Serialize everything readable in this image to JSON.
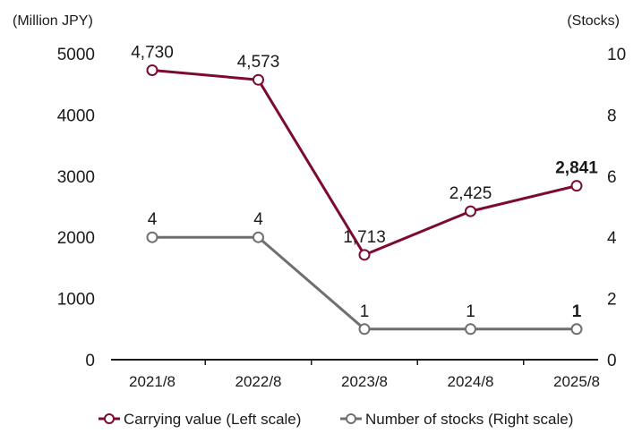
{
  "chart_data": {
    "type": "line",
    "categories": [
      "2021/8",
      "2022/8",
      "2023/8",
      "2024/8",
      "2025/8"
    ],
    "left_axis": {
      "unit": "(Million JPY)",
      "range": [
        0,
        5000
      ],
      "ticks": [
        "0",
        "1000",
        "2000",
        "3000",
        "4000",
        "5000"
      ]
    },
    "right_axis": {
      "unit": "(Stocks)",
      "range": [
        0,
        10
      ],
      "ticks": [
        "0",
        "2",
        "4",
        "6",
        "8",
        "10"
      ]
    },
    "series": [
      {
        "name": "Carrying value (Left scale)",
        "axis": "left",
        "color": "#7b0a35",
        "values": [
          4730,
          4573,
          1713,
          2425,
          2841
        ],
        "labels": [
          "4,730",
          "4,573",
          "1,713",
          "2,425",
          "2,841"
        ],
        "bold_last": true
      },
      {
        "name": "Number of stocks (Right scale)",
        "axis": "right",
        "color": "#6f6f6f",
        "values": [
          4,
          4,
          1,
          1,
          1
        ],
        "labels": [
          "4",
          "4",
          "1",
          "1",
          "1"
        ],
        "bold_last": true
      }
    ],
    "legend_position": "bottom"
  }
}
